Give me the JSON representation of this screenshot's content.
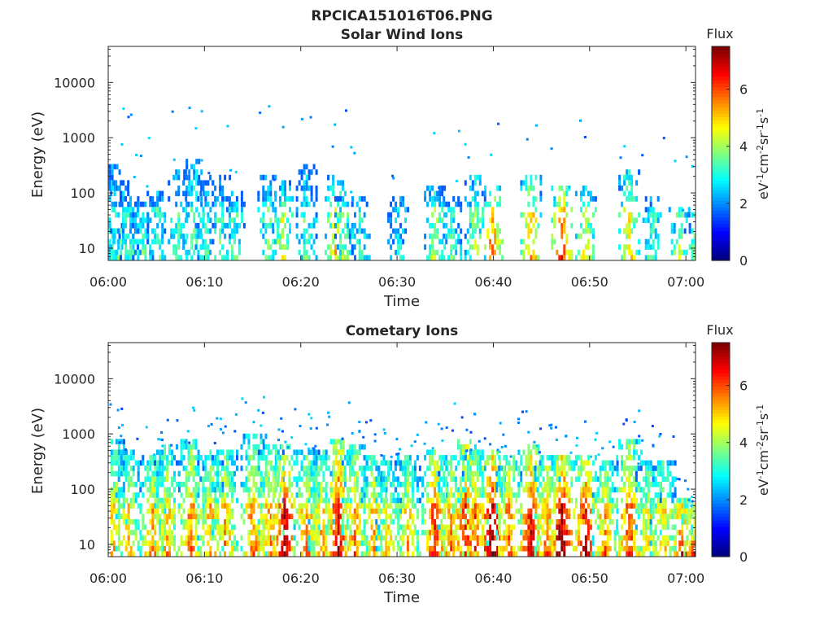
{
  "page": {
    "title": "RPCICA151016T06.PNG"
  },
  "chart_data": [
    {
      "type": "heatmap",
      "title": "Solar Wind Ions",
      "xlabel": "Time",
      "ylabel": "Energy (eV)",
      "x_ticks": [
        "06:00",
        "06:10",
        "06:20",
        "06:30",
        "06:40",
        "06:50",
        "07:00"
      ],
      "y_ticks": [
        "10",
        "100",
        "1000",
        "10000"
      ],
      "y_scale": "log",
      "ylim": [
        6,
        45000
      ],
      "xlim": [
        "06:00",
        "07:01"
      ],
      "colorbar": {
        "title": "Flux",
        "label": "eV-1cm-2sr-1s-1",
        "ticks": [
          "0",
          "2",
          "4",
          "6"
        ],
        "range": [
          0,
          7.5
        ],
        "colormap": "jet"
      },
      "activity_bursts": [
        {
          "t": 0.3,
          "e_top": 300,
          "level": 3.0
        },
        {
          "t": 1.2,
          "e_top": 150,
          "level": 3.2
        },
        {
          "t": 2.2,
          "e_top": 120,
          "level": 2.8
        },
        {
          "t": 3.5,
          "e_top": 80,
          "level": 3.0
        },
        {
          "t": 5.0,
          "e_top": 100,
          "level": 3.1
        },
        {
          "t": 7.2,
          "e_top": 250,
          "level": 3.2
        },
        {
          "t": 8.8,
          "e_top": 400,
          "level": 3.4
        },
        {
          "t": 10.0,
          "e_top": 150,
          "level": 3.0
        },
        {
          "t": 11.5,
          "e_top": 180,
          "level": 3.2
        },
        {
          "t": 13.0,
          "e_top": 100,
          "level": 3.3
        },
        {
          "t": 16.5,
          "e_top": 200,
          "level": 3.4
        },
        {
          "t": 18.0,
          "e_top": 150,
          "level": 4.2
        },
        {
          "t": 20.5,
          "e_top": 300,
          "level": 3.2
        },
        {
          "t": 23.5,
          "e_top": 200,
          "level": 4.5
        },
        {
          "t": 24.5,
          "e_top": 100,
          "level": 3.6
        },
        {
          "t": 26.0,
          "e_top": 80,
          "level": 3.0
        },
        {
          "t": 30.0,
          "e_top": 80,
          "level": 2.8
        },
        {
          "t": 33.8,
          "e_top": 120,
          "level": 4.0
        },
        {
          "t": 35.5,
          "e_top": 80,
          "level": 3.2
        },
        {
          "t": 38.0,
          "e_top": 200,
          "level": 3.8
        },
        {
          "t": 39.8,
          "e_top": 120,
          "level": 5.6
        },
        {
          "t": 43.8,
          "e_top": 180,
          "level": 5.2
        },
        {
          "t": 47.0,
          "e_top": 120,
          "level": 6.0
        },
        {
          "t": 49.5,
          "e_top": 120,
          "level": 4.5
        },
        {
          "t": 54.0,
          "e_top": 250,
          "level": 4.6
        },
        {
          "t": 56.5,
          "e_top": 80,
          "level": 3.2
        },
        {
          "t": 59.2,
          "e_top": 50,
          "level": 4.0
        },
        {
          "t": 60.8,
          "e_top": 40,
          "level": 3.5
        }
      ]
    },
    {
      "type": "heatmap",
      "title": "Cometary Ions",
      "xlabel": "Time",
      "ylabel": "Energy (eV)",
      "x_ticks": [
        "06:00",
        "06:10",
        "06:20",
        "06:30",
        "06:40",
        "06:50",
        "07:00"
      ],
      "y_ticks": [
        "10",
        "100",
        "1000",
        "10000"
      ],
      "y_scale": "log",
      "ylim": [
        6,
        45000
      ],
      "xlim": [
        "06:00",
        "07:01"
      ],
      "colorbar": {
        "title": "Flux",
        "label": "eV-1cm-2sr-1s-1",
        "ticks": [
          "0",
          "2",
          "4",
          "6"
        ],
        "range": [
          0,
          7.5
        ],
        "colormap": "jet"
      },
      "activity_bursts": [
        {
          "t": 0.5,
          "e_top": 800,
          "level": 4.6
        },
        {
          "t": 2.0,
          "e_top": 500,
          "level": 4.8
        },
        {
          "t": 4.5,
          "e_top": 400,
          "level": 5.2
        },
        {
          "t": 6.0,
          "e_top": 600,
          "level": 4.8
        },
        {
          "t": 8.5,
          "e_top": 700,
          "level": 5.4
        },
        {
          "t": 10.5,
          "e_top": 500,
          "level": 5.0
        },
        {
          "t": 12.0,
          "e_top": 500,
          "level": 5.2
        },
        {
          "t": 15.0,
          "e_top": 1000,
          "level": 5.3
        },
        {
          "t": 16.8,
          "e_top": 600,
          "level": 5.4
        },
        {
          "t": 18.2,
          "e_top": 600,
          "level": 6.6
        },
        {
          "t": 20.5,
          "e_top": 500,
          "level": 5.2
        },
        {
          "t": 22.0,
          "e_top": 500,
          "level": 5.0
        },
        {
          "t": 23.8,
          "e_top": 800,
          "level": 6.4
        },
        {
          "t": 25.5,
          "e_top": 600,
          "level": 5.2
        },
        {
          "t": 27.5,
          "e_top": 400,
          "level": 5.0
        },
        {
          "t": 29.0,
          "e_top": 300,
          "level": 4.6
        },
        {
          "t": 31.0,
          "e_top": 400,
          "level": 4.8
        },
        {
          "t": 33.8,
          "e_top": 500,
          "level": 6.0
        },
        {
          "t": 35.5,
          "e_top": 400,
          "level": 5.3
        },
        {
          "t": 37.0,
          "e_top": 800,
          "level": 6.2
        },
        {
          "t": 38.0,
          "e_top": 500,
          "level": 5.5
        },
        {
          "t": 39.8,
          "e_top": 500,
          "level": 7.0
        },
        {
          "t": 41.5,
          "e_top": 400,
          "level": 5.5
        },
        {
          "t": 43.8,
          "e_top": 600,
          "level": 6.5
        },
        {
          "t": 45.5,
          "e_top": 400,
          "level": 5.5
        },
        {
          "t": 47.0,
          "e_top": 400,
          "level": 7.2
        },
        {
          "t": 49.5,
          "e_top": 400,
          "level": 6.5
        },
        {
          "t": 51.5,
          "e_top": 300,
          "level": 5.2
        },
        {
          "t": 54.0,
          "e_top": 800,
          "level": 5.8
        },
        {
          "t": 56.0,
          "e_top": 300,
          "level": 4.6
        },
        {
          "t": 57.5,
          "e_top": 300,
          "level": 4.8
        },
        {
          "t": 59.5,
          "e_top": 60,
          "level": 6.0
        },
        {
          "t": 60.8,
          "e_top": 50,
          "level": 5.5
        }
      ]
    }
  ]
}
